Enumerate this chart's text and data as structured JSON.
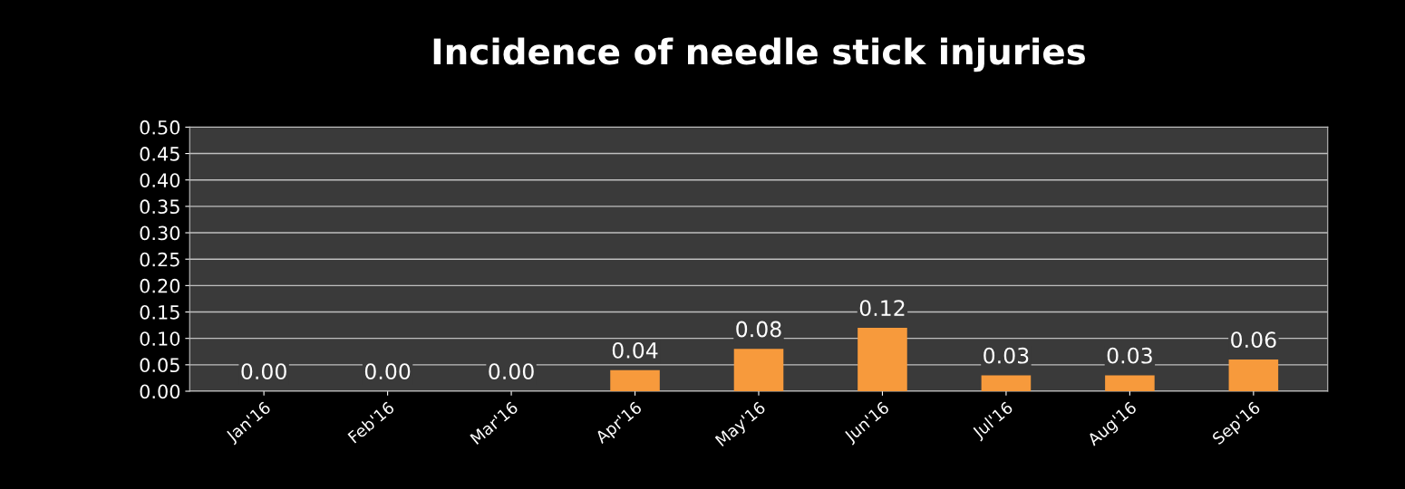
{
  "chart_data": {
    "type": "bar",
    "title": "Incidence of needle stick injuries",
    "categories": [
      "Jan'16",
      "Feb'16",
      "Mar'16",
      "Apr'16",
      "May'16",
      "Jun'16",
      "Jul'16",
      "Aug'16",
      "Sep'16"
    ],
    "values": [
      0,
      0,
      0,
      0.04,
      0.08,
      0.12,
      0.03,
      0.03,
      0.06
    ],
    "value_labels": [
      "0.00",
      "0.00",
      "0.00",
      "0.04",
      "0.08",
      "0.12",
      "0.03",
      "0.03",
      "0.06"
    ],
    "color": "#f79a3c",
    "ylim": [
      0,
      0.5
    ],
    "yticks": [
      {
        "value": 0,
        "label": "0.00"
      },
      {
        "value": 0.05,
        "label": "0.05"
      },
      {
        "value": 0.1,
        "label": "0.10"
      },
      {
        "value": 0.15,
        "label": "0.15"
      },
      {
        "value": 0.2,
        "label": "0.20"
      },
      {
        "value": 0.25,
        "label": "0.25"
      },
      {
        "value": 0.3,
        "label": "0.30"
      },
      {
        "value": 0.35,
        "label": "0.35"
      },
      {
        "value": 0.4,
        "label": "0.40"
      },
      {
        "value": 0.45,
        "label": "0.45"
      },
      {
        "value": 0.5,
        "label": "0.50"
      }
    ],
    "grid": "y"
  }
}
